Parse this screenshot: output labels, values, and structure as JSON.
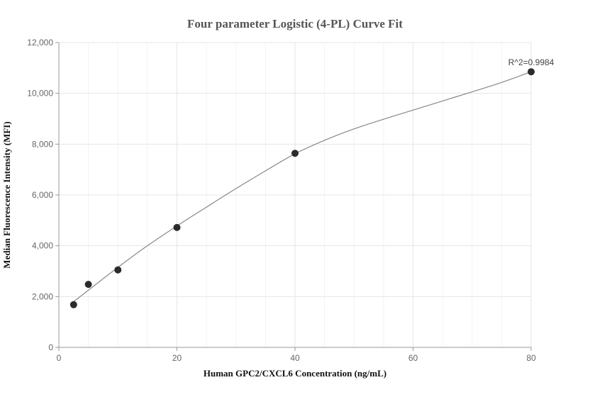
{
  "chart_data": {
    "type": "scatter",
    "title": "Four parameter Logistic (4-PL) Curve Fit",
    "xlabel": "Human GPC2/CXCL6 Concentration (ng/mL)",
    "ylabel": "Median Fluorescence Intensity (MFI)",
    "xlim": [
      0,
      80
    ],
    "ylim": [
      0,
      12000
    ],
    "x_ticks": [
      0,
      20,
      40,
      60,
      80
    ],
    "x_tick_labels": [
      "0",
      "20",
      "40",
      "60",
      "80"
    ],
    "y_ticks": [
      0,
      2000,
      4000,
      6000,
      8000,
      10000,
      12000
    ],
    "y_tick_labels": [
      "0",
      "2,000",
      "4,000",
      "6,000",
      "8,000",
      "10,000",
      "12,000"
    ],
    "grid": true,
    "points": [
      {
        "x": 2.5,
        "y": 1680
      },
      {
        "x": 5,
        "y": 2480
      },
      {
        "x": 10,
        "y": 3050
      },
      {
        "x": 20,
        "y": 4720
      },
      {
        "x": 40,
        "y": 7640
      },
      {
        "x": 80,
        "y": 10850
      }
    ],
    "fit_curve": [
      {
        "x": 2.5,
        "y": 1800
      },
      {
        "x": 5,
        "y": 2250
      },
      {
        "x": 10,
        "y": 3150
      },
      {
        "x": 15,
        "y": 4000
      },
      {
        "x": 20,
        "y": 4780
      },
      {
        "x": 25,
        "y": 5520
      },
      {
        "x": 30,
        "y": 6250
      },
      {
        "x": 35,
        "y": 6950
      },
      {
        "x": 40,
        "y": 7620
      },
      {
        "x": 45,
        "y": 8150
      },
      {
        "x": 50,
        "y": 8600
      },
      {
        "x": 55,
        "y": 8980
      },
      {
        "x": 60,
        "y": 9340
      },
      {
        "x": 65,
        "y": 9700
      },
      {
        "x": 70,
        "y": 10060
      },
      {
        "x": 75,
        "y": 10430
      },
      {
        "x": 80,
        "y": 10850
      }
    ],
    "annotation": "R^2=0.9984"
  }
}
